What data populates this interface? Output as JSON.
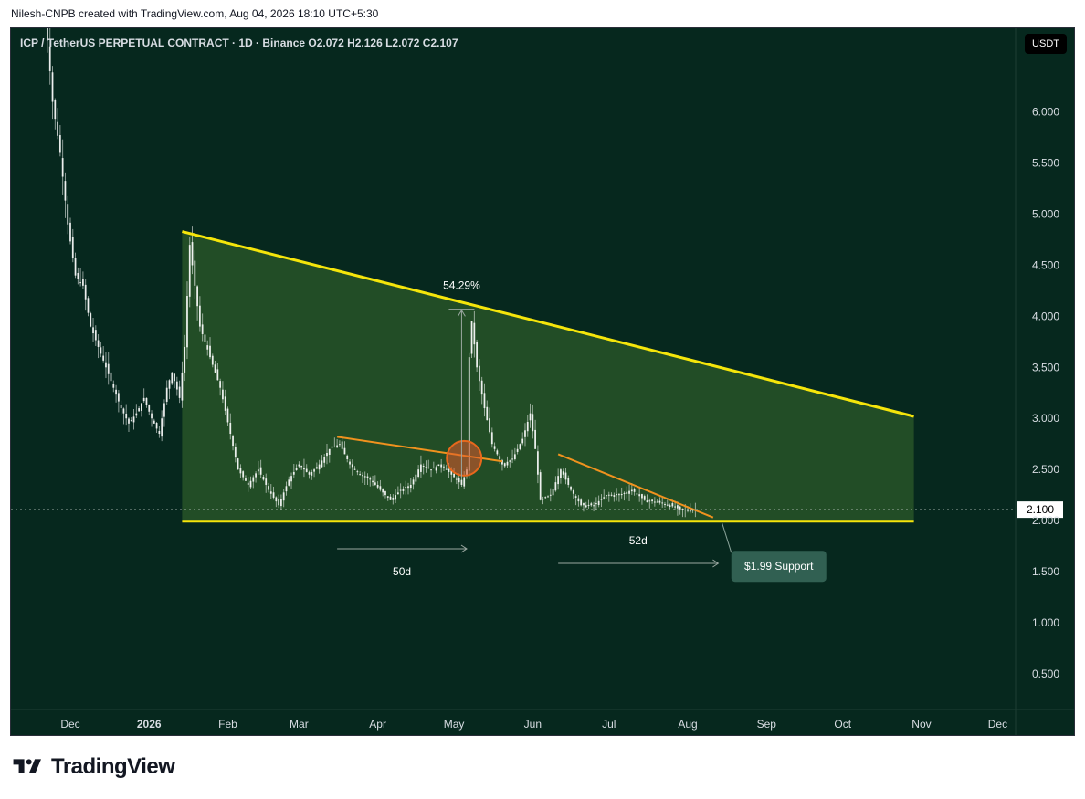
{
  "header": {
    "attribution": "Nilesh-CNPB created with TradingView.com, Aug 04, 2026 18:10 UTC+5:30"
  },
  "legend": {
    "text": "ICP / TetherUS PERPETUAL CONTRACT · 1D · Binance  O2.072  H2.126  L2.072  C2.107"
  },
  "currency": "USDT",
  "footer": {
    "brand": "TradingView"
  },
  "colors": {
    "background": "#06281e",
    "candle": "#ffffff",
    "trendline_major": "#f5e50b",
    "trendline_minor": "#f0921e",
    "triangle_fill": "#3b6b2e",
    "support_label_bg": "#3a6a5c",
    "price_badge_bg": "#ffffff"
  },
  "chart_data": {
    "type": "candlestick",
    "title": "ICP / TetherUS PERPETUAL CONTRACT · 1D · Binance",
    "x_tick_labels": [
      "Dec",
      "2026",
      "Feb",
      "Mar",
      "Apr",
      "May",
      "Jun",
      "Jul",
      "Aug",
      "Sep",
      "Oct",
      "Nov",
      "Dec"
    ],
    "y_tick_labels": [
      "6.000",
      "5.500",
      "5.000",
      "4.500",
      "4.000",
      "3.500",
      "3.000",
      "2.500",
      "2.000",
      "1.500",
      "1.000",
      "0.500"
    ],
    "ylim": [
      0.15,
      6.82
    ],
    "last_price": "2.100",
    "ohlc_last": {
      "open": 2.072,
      "high": 2.126,
      "low": 2.072,
      "close": 2.107
    },
    "price_path": [
      [
        "2025-11-21",
        7.0
      ],
      [
        "2025-11-24",
        6.1
      ],
      [
        "2025-11-27",
        5.6
      ],
      [
        "2025-11-30",
        4.9
      ],
      [
        "2025-12-03",
        4.4
      ],
      [
        "2025-12-06",
        4.3
      ],
      [
        "2025-12-09",
        3.9
      ],
      [
        "2025-12-12",
        3.7
      ],
      [
        "2025-12-15",
        3.5
      ],
      [
        "2025-12-18",
        3.3
      ],
      [
        "2025-12-21",
        3.1
      ],
      [
        "2025-12-24",
        2.95
      ],
      [
        "2025-12-27",
        3.05
      ],
      [
        "2025-12-30",
        3.2
      ],
      [
        "2026-01-02",
        3.0
      ],
      [
        "2026-01-05",
        2.85
      ],
      [
        "2026-01-08",
        3.3
      ],
      [
        "2026-01-10",
        3.45
      ],
      [
        "2026-01-13",
        3.2
      ],
      [
        "2026-01-15",
        3.7
      ],
      [
        "2026-01-17",
        4.7
      ],
      [
        "2026-01-19",
        4.3
      ],
      [
        "2026-01-21",
        3.9
      ],
      [
        "2026-01-25",
        3.6
      ],
      [
        "2026-01-29",
        3.3
      ],
      [
        "2026-02-02",
        2.85
      ],
      [
        "2026-02-05",
        2.5
      ],
      [
        "2026-02-09",
        2.35
      ],
      [
        "2026-02-13",
        2.5
      ],
      [
        "2026-02-17",
        2.3
      ],
      [
        "2026-02-21",
        2.15
      ],
      [
        "2026-02-25",
        2.4
      ],
      [
        "2026-03-01",
        2.55
      ],
      [
        "2026-03-05",
        2.45
      ],
      [
        "2026-03-09",
        2.55
      ],
      [
        "2026-03-13",
        2.7
      ],
      [
        "2026-03-17",
        2.75
      ],
      [
        "2026-03-21",
        2.55
      ],
      [
        "2026-03-25",
        2.45
      ],
      [
        "2026-03-29",
        2.4
      ],
      [
        "2026-04-02",
        2.3
      ],
      [
        "2026-04-06",
        2.2
      ],
      [
        "2026-04-10",
        2.3
      ],
      [
        "2026-04-14",
        2.35
      ],
      [
        "2026-04-18",
        2.55
      ],
      [
        "2026-04-22",
        2.5
      ],
      [
        "2026-04-26",
        2.55
      ],
      [
        "2026-04-30",
        2.45
      ],
      [
        "2026-05-04",
        2.35
      ],
      [
        "2026-05-06",
        2.5
      ],
      [
        "2026-05-07",
        3.6
      ],
      [
        "2026-05-08",
        3.95
      ],
      [
        "2026-05-10",
        3.5
      ],
      [
        "2026-05-13",
        3.1
      ],
      [
        "2026-05-16",
        2.75
      ],
      [
        "2026-05-20",
        2.55
      ],
      [
        "2026-05-24",
        2.6
      ],
      [
        "2026-05-28",
        2.8
      ],
      [
        "2026-05-31",
        3.05
      ],
      [
        "2026-06-02",
        2.7
      ],
      [
        "2026-06-04",
        2.2
      ],
      [
        "2026-06-08",
        2.25
      ],
      [
        "2026-06-12",
        2.5
      ],
      [
        "2026-06-16",
        2.3
      ],
      [
        "2026-06-20",
        2.15
      ],
      [
        "2026-06-25",
        2.15
      ],
      [
        "2026-06-30",
        2.25
      ],
      [
        "2026-07-05",
        2.25
      ],
      [
        "2026-07-10",
        2.3
      ],
      [
        "2026-07-15",
        2.2
      ],
      [
        "2026-07-20",
        2.18
      ],
      [
        "2026-07-25",
        2.15
      ],
      [
        "2026-07-30",
        2.1
      ],
      [
        "2026-08-04",
        2.107
      ]
    ],
    "annotations": {
      "move_percent": "54.29%",
      "duration_1": "50d",
      "duration_2": "52d",
      "support_label": "$1.99 Support"
    },
    "trendlines": {
      "descending_resistance": [
        [
          "2026-01-14",
          4.83
        ],
        [
          "2026-10-29",
          3.02
        ]
      ],
      "support": [
        [
          "2026-01-14",
          1.99
        ],
        [
          "2026-10-29",
          1.99
        ]
      ],
      "minor_resistance_1": [
        [
          "2026-03-16",
          2.82
        ],
        [
          "2026-05-20",
          2.58
        ]
      ],
      "minor_resistance_2": [
        [
          "2026-06-11",
          2.65
        ],
        [
          "2026-08-11",
          2.03
        ]
      ]
    }
  }
}
